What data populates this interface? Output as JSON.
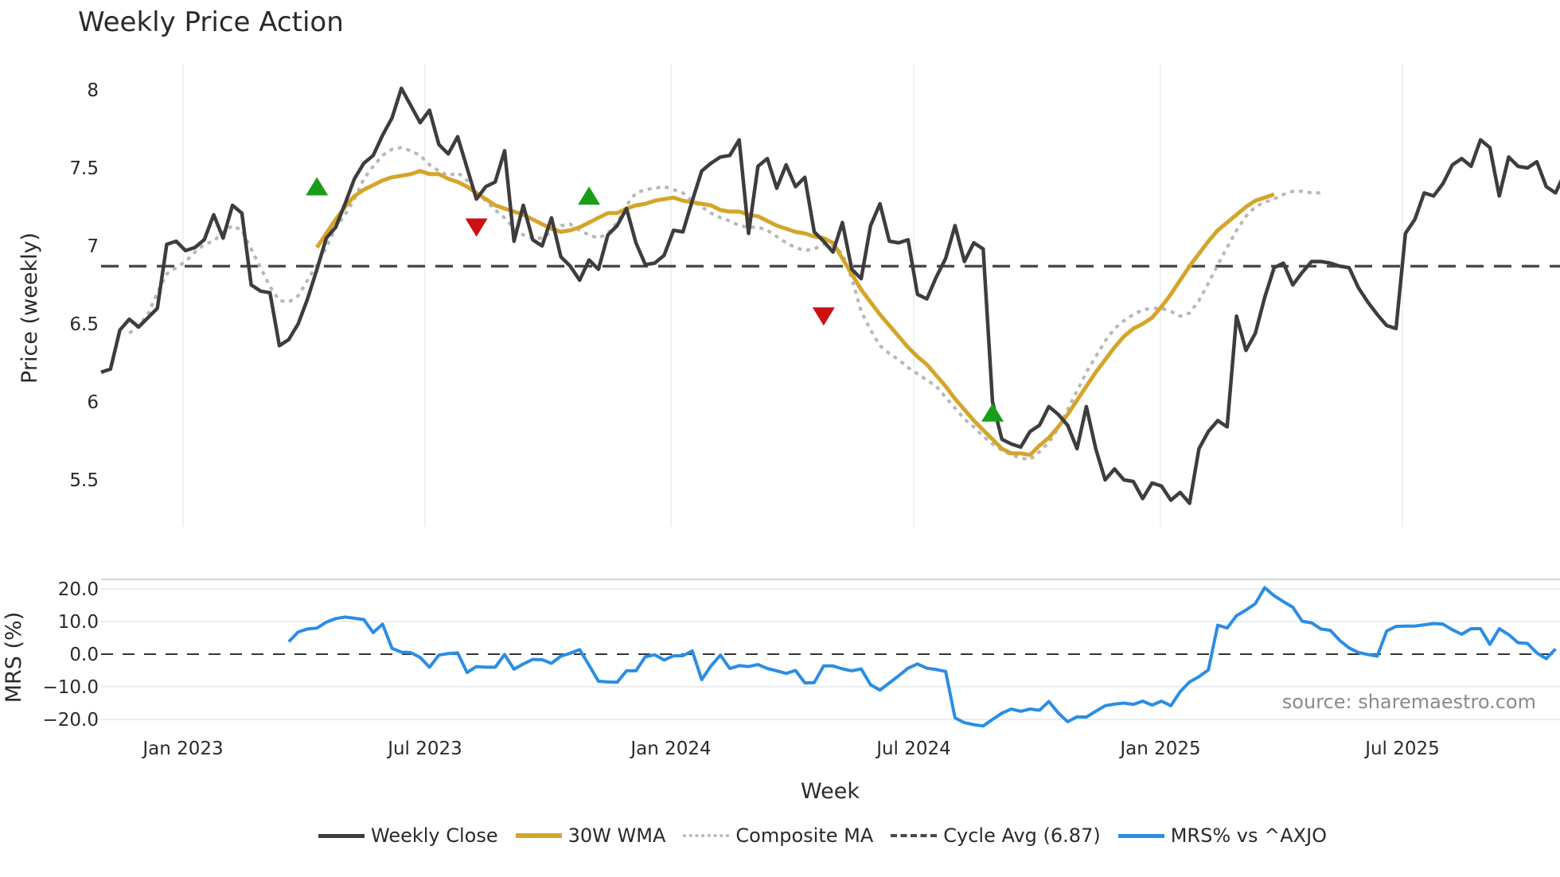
{
  "title": "Weekly Price Action",
  "colors": {
    "weekly_close": "#3d3d3d",
    "wma30": "#d4a52a",
    "composite_ma": "#b8b8b8",
    "cycle_avg": "#4a4a4a",
    "mrs": "#2b8de3",
    "buy_marker": "#1a9e1a",
    "sell_marker": "#cc1111",
    "grid": "#e9edf2",
    "source": "#8a8a8a"
  },
  "legend": [
    {
      "key": "weekly_close",
      "label": "Weekly Close",
      "style": "solid"
    },
    {
      "key": "wma30",
      "label": "30W WMA",
      "style": "solid"
    },
    {
      "key": "composite_ma",
      "label": "Composite MA",
      "style": "dotted"
    },
    {
      "key": "cycle_avg",
      "label": "Cycle Avg (6.87)",
      "style": "dashed"
    },
    {
      "key": "mrs",
      "label": "MRS% vs ^AXJO",
      "style": "solid"
    }
  ],
  "source_label": "source: sharemaestro.com",
  "chart_data": [
    {
      "type": "line",
      "title": "Weekly Price Action",
      "xlabel": "Week",
      "ylabel": "Price (weekly)",
      "ylim": [
        5.2,
        8.2
      ],
      "yticks": [
        5.5,
        6,
        6.5,
        7,
        7.5,
        8
      ],
      "ytick_labels": [
        "5.5",
        "6",
        "6.5",
        "7",
        "7.5",
        "8"
      ],
      "xticks": [
        "Jan 2023",
        "Jul 2023",
        "Jan 2024",
        "Jul 2024",
        "Jan 2025",
        "Jul 2025"
      ],
      "grid": true,
      "legend_position": "bottom",
      "x_start_week": 0,
      "week_count": 156,
      "cycle_avg": 6.87,
      "series": [
        {
          "name": "Weekly Close",
          "key": "weekly_close",
          "start": 0,
          "values": [
            6.19,
            6.21,
            6.46,
            6.53,
            6.48,
            6.54,
            6.6,
            7.01,
            7.03,
            6.97,
            6.99,
            7.04,
            7.2,
            7.05,
            7.26,
            7.21,
            6.75,
            6.71,
            6.7,
            6.36,
            6.4,
            6.5,
            6.66,
            6.85,
            7.05,
            7.12,
            7.27,
            7.43,
            7.53,
            7.58,
            7.71,
            7.82,
            8.01,
            7.9,
            7.79,
            7.87,
            7.65,
            7.59,
            7.7,
            7.5,
            7.3,
            7.38,
            7.41,
            7.61,
            7.03,
            7.26,
            7.04,
            7.0,
            7.18,
            6.93,
            6.87,
            6.78,
            6.91,
            6.85,
            7.07,
            7.13,
            7.24,
            7.02,
            6.88,
            6.89,
            6.94,
            7.1,
            7.09,
            7.29,
            7.48,
            7.53,
            7.57,
            7.58,
            7.68,
            7.08,
            7.51,
            7.56,
            7.37,
            7.52,
            7.38,
            7.44,
            7.09,
            7.03,
            6.96,
            7.15,
            6.85,
            6.79,
            7.13,
            7.27,
            7.03,
            7.02,
            7.04,
            6.69,
            6.66,
            6.8,
            6.92,
            7.13,
            6.9,
            7.02,
            6.98,
            6.0,
            5.76,
            5.73,
            5.71,
            5.81,
            5.85,
            5.97,
            5.92,
            5.85,
            5.7,
            5.97,
            5.7,
            5.5,
            5.57,
            5.5,
            5.49,
            5.38,
            5.48,
            5.46,
            5.37,
            5.42,
            5.35,
            5.7,
            5.81,
            5.88,
            5.84,
            6.55,
            6.33,
            6.44,
            6.67,
            6.86,
            6.89,
            6.75,
            6.83,
            6.9,
            6.9,
            6.89,
            6.87,
            6.86,
            6.73,
            6.64,
            6.56,
            6.49,
            6.47,
            7.08,
            7.17,
            7.34,
            7.32,
            7.4,
            7.52,
            7.56,
            7.51,
            7.68,
            7.63,
            7.32,
            7.57,
            7.51,
            7.5,
            7.54,
            7.38,
            7.34,
            7.47
          ]
        },
        {
          "name": "30W WMA",
          "key": "wma30",
          "start": 23,
          "values": [
            6.99,
            7.08,
            7.17,
            7.25,
            7.32,
            7.36,
            7.39,
            7.42,
            7.44,
            7.45,
            7.46,
            7.48,
            7.46,
            7.46,
            7.43,
            7.41,
            7.38,
            7.34,
            7.3,
            7.26,
            7.24,
            7.22,
            7.2,
            7.17,
            7.14,
            7.11,
            7.09,
            7.1,
            7.12,
            7.15,
            7.18,
            7.21,
            7.21,
            7.24,
            7.26,
            7.27,
            7.29,
            7.3,
            7.31,
            7.29,
            7.28,
            7.27,
            7.26,
            7.23,
            7.22,
            7.22,
            7.2,
            7.19,
            7.16,
            7.13,
            7.11,
            7.09,
            7.08,
            7.06,
            7.05,
            7.02,
            6.92,
            6.82,
            6.72,
            6.64,
            6.56,
            6.49,
            6.42,
            6.35,
            6.29,
            6.24,
            6.17,
            6.1,
            6.02,
            5.95,
            5.88,
            5.82,
            5.76,
            5.7,
            5.67,
            5.67,
            5.66,
            5.72,
            5.77,
            5.84,
            5.92,
            6.01,
            6.1,
            6.19,
            6.27,
            6.35,
            6.42,
            6.47,
            6.5,
            6.54,
            6.61,
            6.69,
            6.78,
            6.87,
            6.95,
            7.03,
            7.1,
            7.15,
            7.2,
            7.25,
            7.29,
            7.31,
            7.33
          ]
        },
        {
          "name": "Composite MA",
          "key": "composite_ma",
          "start": 3,
          "values": [
            6.44,
            6.49,
            6.56,
            6.7,
            6.82,
            6.86,
            6.9,
            6.96,
            7.01,
            7.03,
            7.09,
            7.13,
            7.1,
            6.98,
            6.86,
            6.74,
            6.65,
            6.64,
            6.68,
            6.78,
            6.88,
            6.99,
            7.12,
            7.2,
            7.3,
            7.43,
            7.51,
            7.58,
            7.62,
            7.63,
            7.61,
            7.58,
            7.52,
            7.48,
            7.45,
            7.47,
            7.42,
            7.34,
            7.29,
            7.23,
            7.18,
            7.11,
            7.07,
            7.05,
            7.05,
            7.09,
            7.13,
            7.14,
            7.1,
            7.07,
            7.05,
            7.08,
            7.15,
            7.26,
            7.34,
            7.36,
            7.37,
            7.38,
            7.36,
            7.34,
            7.29,
            7.25,
            7.21,
            7.18,
            7.16,
            7.13,
            7.12,
            7.12,
            7.1,
            7.06,
            7.02,
            6.99,
            6.97,
            6.98,
            7.01,
            7.0,
            6.95,
            6.79,
            6.58,
            6.46,
            6.36,
            6.31,
            6.27,
            6.22,
            6.18,
            6.14,
            6.1,
            6.03,
            5.96,
            5.89,
            5.84,
            5.78,
            5.73,
            5.69,
            5.66,
            5.64,
            5.63,
            5.68,
            5.74,
            5.83,
            5.95,
            6.07,
            6.19,
            6.29,
            6.39,
            6.47,
            6.52,
            6.56,
            6.59,
            6.6,
            6.6,
            6.58,
            6.55,
            6.57,
            6.65,
            6.76,
            6.88,
            6.99,
            7.1,
            7.19,
            7.25,
            7.28,
            7.3,
            7.33,
            7.35,
            7.35,
            7.34,
            7.34
          ]
        }
      ],
      "markers": [
        {
          "type": "buy",
          "week": 23,
          "value": 7.38
        },
        {
          "type": "sell",
          "week": 40,
          "value": 7.12
        },
        {
          "type": "buy",
          "week": 52,
          "value": 7.32
        },
        {
          "type": "sell",
          "week": 77,
          "value": 6.55
        },
        {
          "type": "buy",
          "week": 95,
          "value": 5.93
        }
      ]
    },
    {
      "type": "line",
      "title": "",
      "xlabel": "Week",
      "ylabel": "MRS (%)",
      "ylim": [
        -24,
        25
      ],
      "yticks": [
        20,
        10,
        0,
        -10,
        -20
      ],
      "ytick_labels": [
        "20.0",
        "10.0",
        "0.0",
        "−10.0",
        "−20.0"
      ],
      "xticks": [
        "Jan 2023",
        "Jul 2023",
        "Jan 2024",
        "Jul 2024",
        "Jan 2025",
        "Jul 2025"
      ],
      "zero_line": true,
      "series": [
        {
          "name": "MRS% vs ^AXJO",
          "key": "mrs",
          "start": 20,
          "values": [
            3.8,
            6.8,
            7.7,
            8.0,
            9.8,
            10.9,
            11.4,
            11.0,
            10.6,
            6.6,
            9.2,
            1.8,
            0.6,
            0.5,
            -1.0,
            -4.0,
            -0.3,
            0.2,
            0.4,
            -5.6,
            -3.8,
            -4.0,
            -4.0,
            -0.1,
            -4.6,
            -3.0,
            -1.6,
            -1.7,
            -2.8,
            -0.6,
            0.3,
            1.4,
            -3.4,
            -8.3,
            -8.5,
            -8.6,
            -5.1,
            -5.1,
            -0.8,
            -0.2,
            -1.8,
            -0.5,
            -0.5,
            1.0,
            -7.8,
            -3.6,
            -0.3,
            -4.4,
            -3.5,
            -3.8,
            -3.2,
            -4.4,
            -5.1,
            -5.9,
            -5.0,
            -8.8,
            -8.7,
            -3.6,
            -3.6,
            -4.5,
            -5.1,
            -4.5,
            -9.4,
            -11.0,
            -8.8,
            -6.6,
            -4.3,
            -3.0,
            -4.3,
            -4.7,
            -5.3,
            -19.5,
            -21.0,
            -21.6,
            -22.0,
            -20.0,
            -18.1,
            -16.8,
            -17.5,
            -16.8,
            -17.2,
            -14.5,
            -18.0,
            -20.7,
            -19.2,
            -19.3,
            -17.5,
            -15.8,
            -15.3,
            -15.0,
            -15.4,
            -14.4,
            -15.6,
            -14.4,
            -15.8,
            -11.5,
            -8.5,
            -6.9,
            -4.8,
            8.9,
            8.0,
            11.8,
            13.5,
            15.5,
            20.4,
            17.9,
            16.1,
            14.4,
            10.1,
            9.6,
            7.7,
            7.3,
            4.2,
            1.9,
            0.5,
            -0.1,
            -0.6,
            7.1,
            8.5,
            8.6,
            8.6,
            9.0,
            9.4,
            9.2,
            7.5,
            6.1,
            7.8,
            7.8,
            3.0,
            7.8,
            6.0,
            3.5,
            3.3,
            0.4,
            -1.4,
            1.6
          ]
        }
      ]
    }
  ],
  "annotations": {
    "source": "source: sharemaestro.com"
  }
}
